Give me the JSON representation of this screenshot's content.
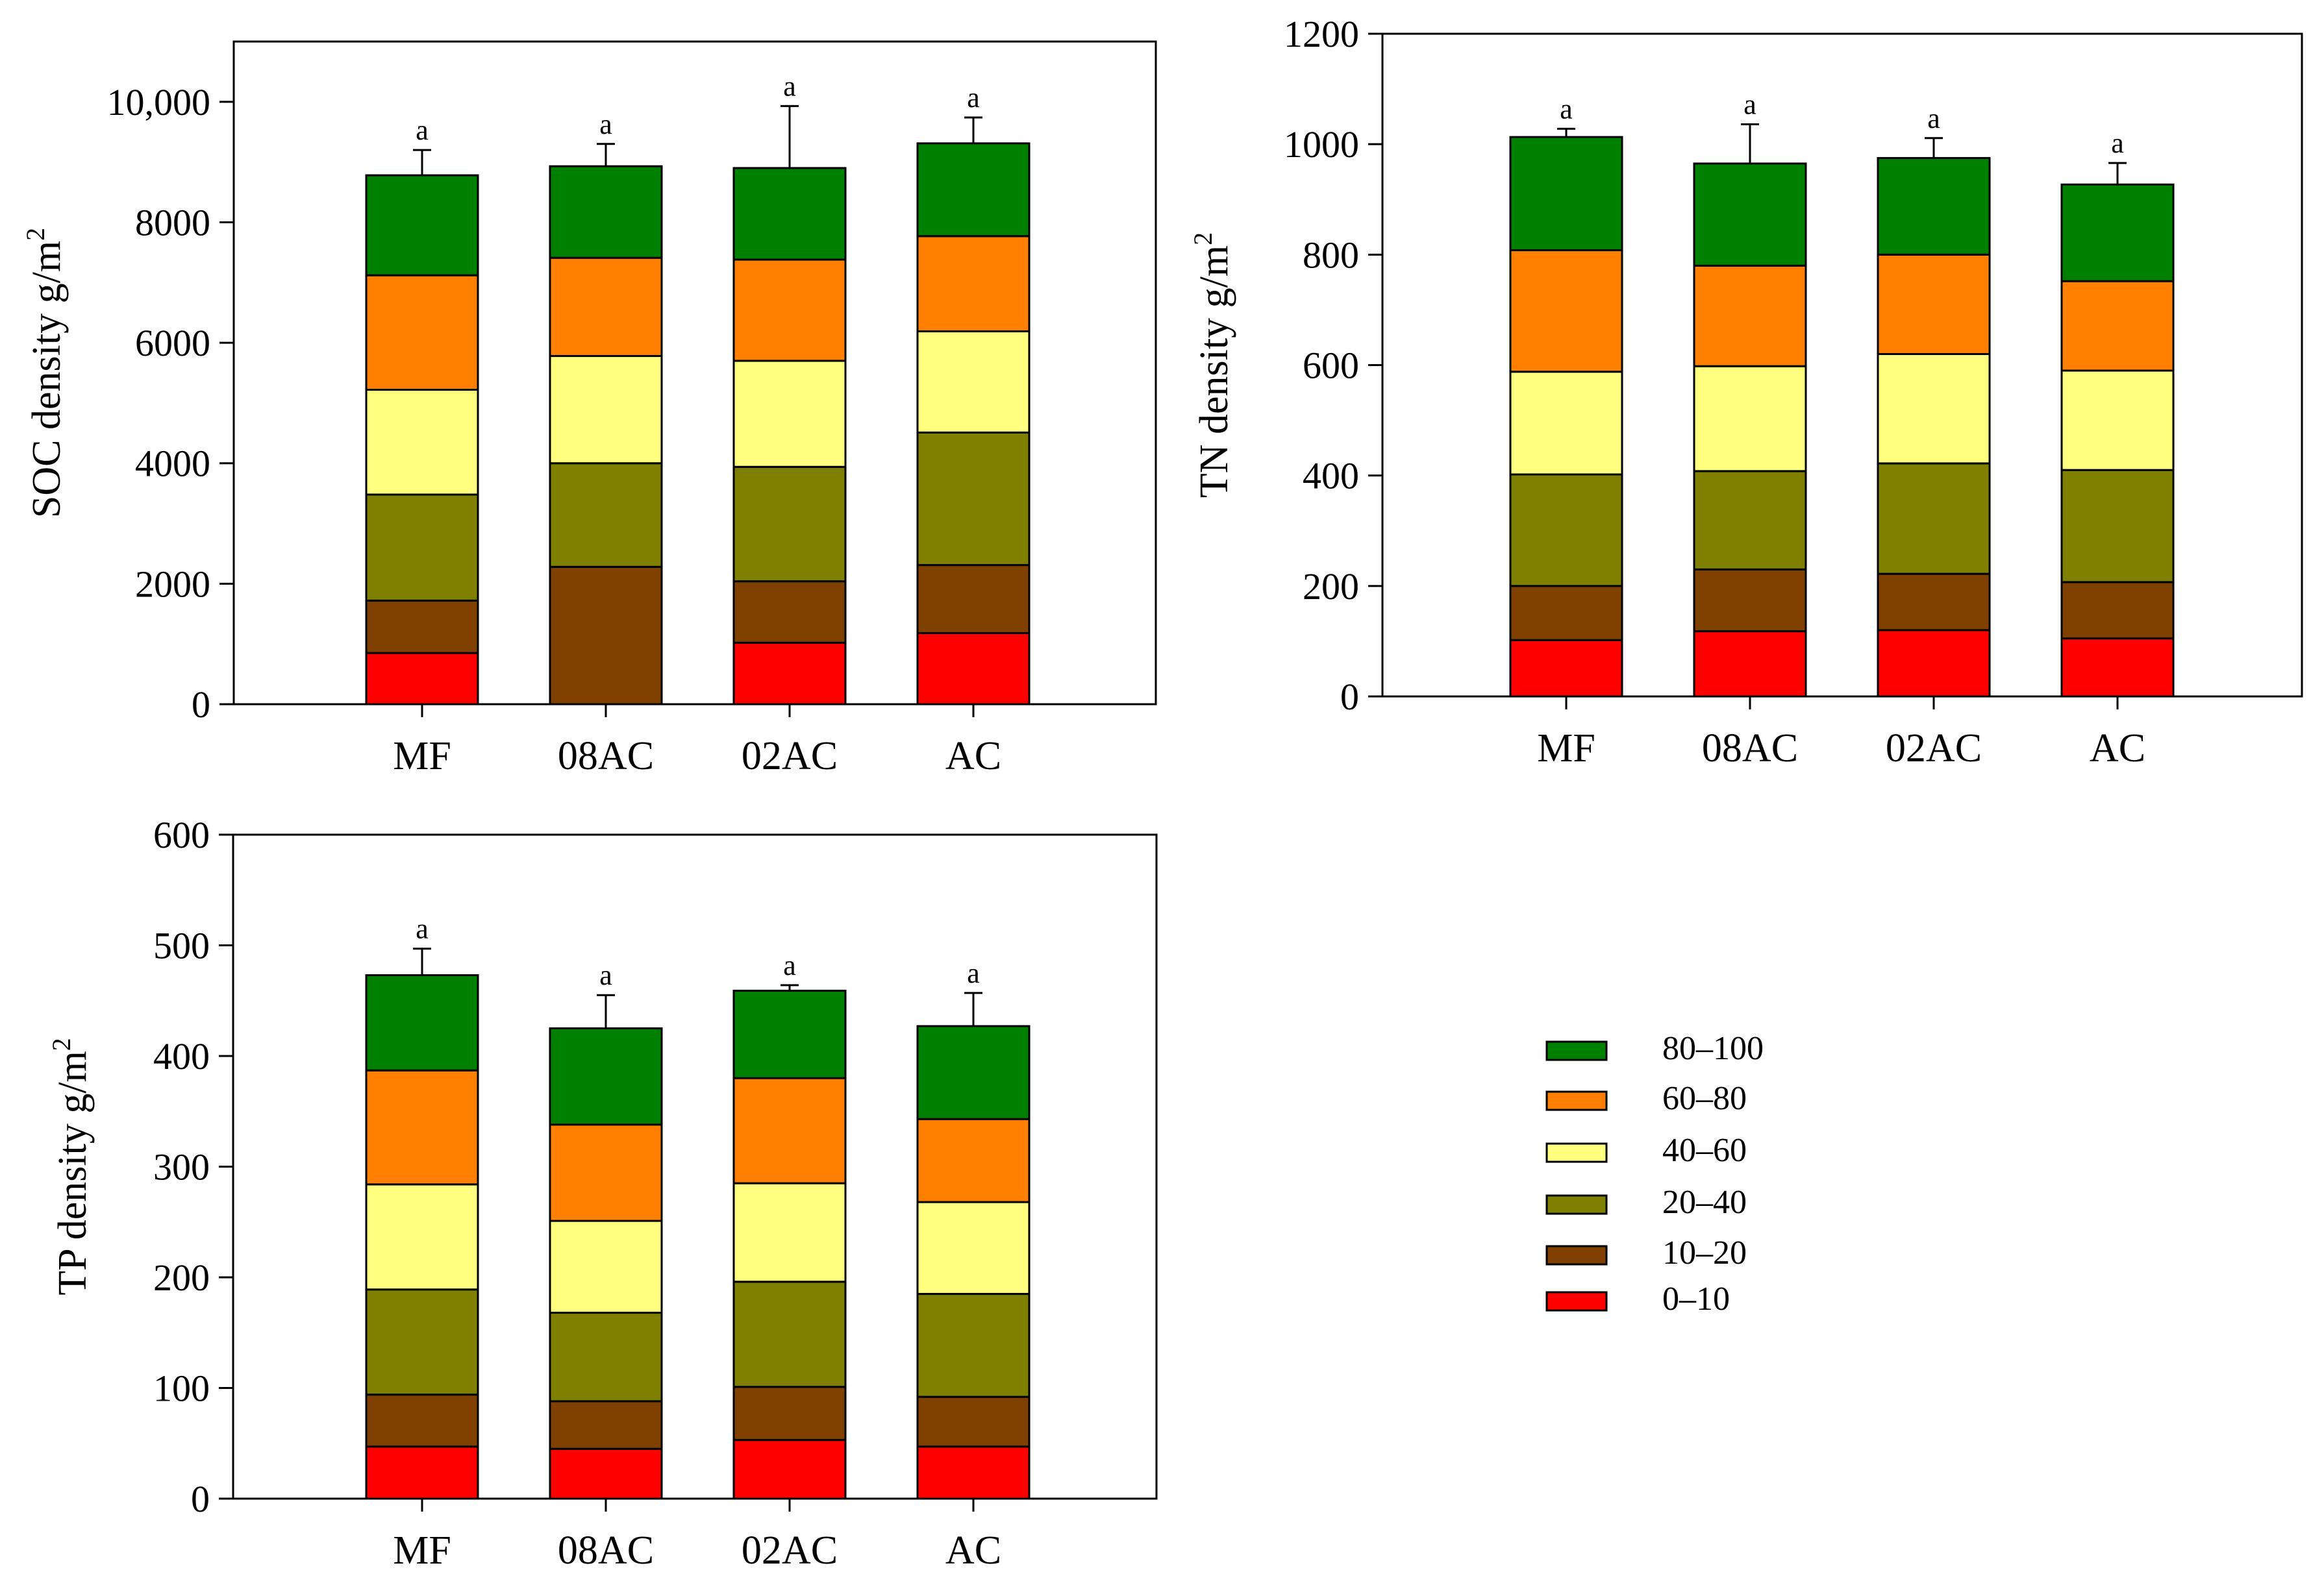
{
  "legend": {
    "title": "",
    "entries": [
      {
        "label": "80–100",
        "color": "#008000"
      },
      {
        "label": "60–80",
        "color": "#FF8000"
      },
      {
        "label": "40–60",
        "color": "#FFFF80"
      },
      {
        "label": "20–40",
        "color": "#808000"
      },
      {
        "label": "10–20",
        "color": "#804000"
      },
      {
        "label": "0–10",
        "color": "#FF0000"
      }
    ]
  },
  "chart_data": [
    {
      "type": "bar",
      "stacked": true,
      "title": "",
      "xlabel": "",
      "ylabel": "SOC density g/m",
      "ylabel_sup": "2",
      "categories": [
        "MF",
        "08AC",
        "02AC",
        "AC"
      ],
      "ylim": [
        0,
        11000
      ],
      "yticks": [
        0,
        2000,
        4000,
        6000,
        8000,
        10000
      ],
      "ytick_labels": [
        "0",
        "2000",
        "4000",
        "6000",
        "8000",
        "10,000"
      ],
      "series": [
        {
          "name": "0–10",
          "values": [
            850,
            0,
            1020,
            1180
          ]
        },
        {
          "name": "10–20",
          "values": [
            870,
            2280,
            1020,
            1130
          ]
        },
        {
          "name": "20–40",
          "values": [
            1760,
            1720,
            1900,
            2200
          ]
        },
        {
          "name": "40–60",
          "values": [
            1740,
            1780,
            1760,
            1680
          ]
        },
        {
          "name": "60–80",
          "values": [
            1900,
            1630,
            1680,
            1580
          ]
        },
        {
          "name": "80–100",
          "values": [
            1660,
            1520,
            1520,
            1540
          ]
        }
      ],
      "totals": [
        8780,
        8930,
        8900,
        9310
      ],
      "error_upper": [
        9200,
        9300,
        9930,
        9740
      ],
      "significance": [
        "a",
        "a",
        "a",
        "a"
      ]
    },
    {
      "type": "bar",
      "stacked": true,
      "title": "",
      "xlabel": "",
      "ylabel": "TN density g/m",
      "ylabel_sup": "2",
      "categories": [
        "MF",
        "08AC",
        "02AC",
        "AC"
      ],
      "ylim": [
        0,
        1200
      ],
      "yticks": [
        0,
        200,
        400,
        600,
        800,
        1000,
        1200
      ],
      "ytick_labels": [
        "0",
        "200",
        "400",
        "600",
        "800",
        "1000",
        "1200"
      ],
      "series": [
        {
          "name": "0–10",
          "values": [
            102,
            118,
            120,
            105
          ]
        },
        {
          "name": "10–20",
          "values": [
            98,
            112,
            102,
            102
          ]
        },
        {
          "name": "20–40",
          "values": [
            202,
            178,
            200,
            203
          ]
        },
        {
          "name": "40–60",
          "values": [
            186,
            190,
            198,
            180
          ]
        },
        {
          "name": "60–80",
          "values": [
            220,
            182,
            180,
            162
          ]
        },
        {
          "name": "80–100",
          "values": [
            205,
            185,
            175,
            175
          ]
        }
      ],
      "totals": [
        1013,
        965,
        975,
        927
      ],
      "error_upper": [
        1028,
        1036,
        1011,
        966
      ],
      "significance": [
        "a",
        "a",
        "a",
        "a"
      ]
    },
    {
      "type": "bar",
      "stacked": true,
      "title": "",
      "xlabel": "",
      "ylabel": "TP density g/m",
      "ylabel_sup": "2",
      "categories": [
        "MF",
        "08AC",
        "02AC",
        "AC"
      ],
      "ylim": [
        0,
        600
      ],
      "yticks": [
        0,
        100,
        200,
        300,
        400,
        500,
        600
      ],
      "ytick_labels": [
        "0",
        "100",
        "200",
        "300",
        "400",
        "500",
        "600"
      ],
      "series": [
        {
          "name": "0–10",
          "values": [
            47,
            45,
            53,
            47
          ]
        },
        {
          "name": "10–20",
          "values": [
            47,
            43,
            48,
            45
          ]
        },
        {
          "name": "20–40",
          "values": [
            95,
            80,
            95,
            93
          ]
        },
        {
          "name": "40–60",
          "values": [
            95,
            83,
            89,
            83
          ]
        },
        {
          "name": "60–80",
          "values": [
            103,
            87,
            95,
            75
          ]
        },
        {
          "name": "80–100",
          "values": [
            86,
            87,
            79,
            84
          ]
        }
      ],
      "totals": [
        473,
        425,
        459,
        427
      ],
      "error_upper": [
        497,
        455,
        464,
        457
      ],
      "significance": [
        "a",
        "a",
        "a",
        "a"
      ]
    }
  ]
}
